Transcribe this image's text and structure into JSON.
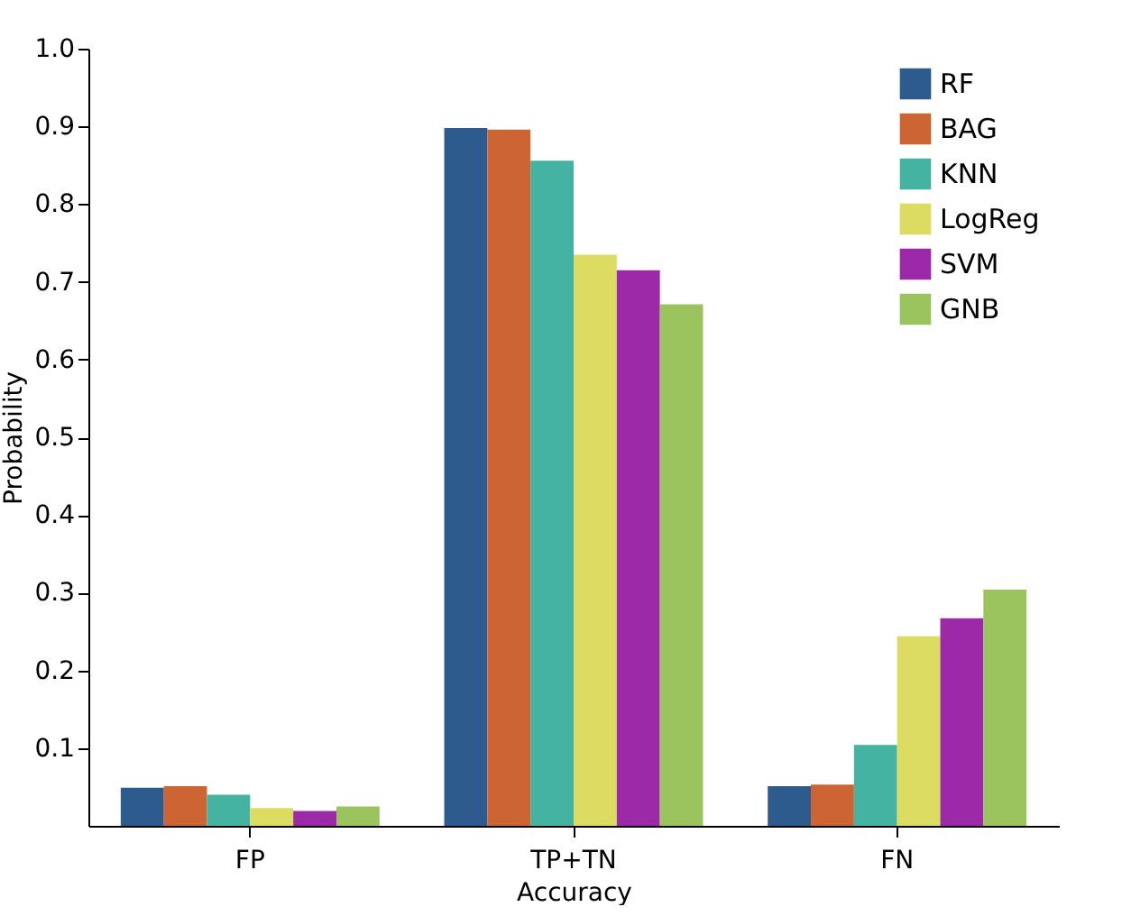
{
  "chart_data": {
    "type": "bar",
    "xlabel": "Accuracy",
    "ylabel": "Probability",
    "categories": [
      "FP",
      "TP+TN",
      "FN"
    ],
    "series": [
      {
        "name": "RF",
        "color": "#2d5b8e",
        "values": [
          0.049,
          0.898,
          0.051
        ]
      },
      {
        "name": "BAG",
        "color": "#cc6533",
        "values": [
          0.051,
          0.896,
          0.053
        ]
      },
      {
        "name": "KNN",
        "color": "#45b3a2",
        "values": [
          0.04,
          0.856,
          0.104
        ]
      },
      {
        "name": "LogReg",
        "color": "#dcdc62",
        "values": [
          0.023,
          0.735,
          0.244
        ]
      },
      {
        "name": "SVM",
        "color": "#9c2aa8",
        "values": [
          0.019,
          0.715,
          0.267
        ]
      },
      {
        "name": "GNB",
        "color": "#9bc45f",
        "values": [
          0.025,
          0.671,
          0.304
        ]
      }
    ],
    "ylim": [
      0,
      1
    ],
    "yticks": [
      0.1,
      0.2,
      0.3,
      0.4,
      0.5,
      0.6,
      0.7,
      0.8,
      0.9,
      {
        "value": 1,
        "label": "1.0"
      }
    ],
    "grid": false,
    "legend": "top right"
  }
}
